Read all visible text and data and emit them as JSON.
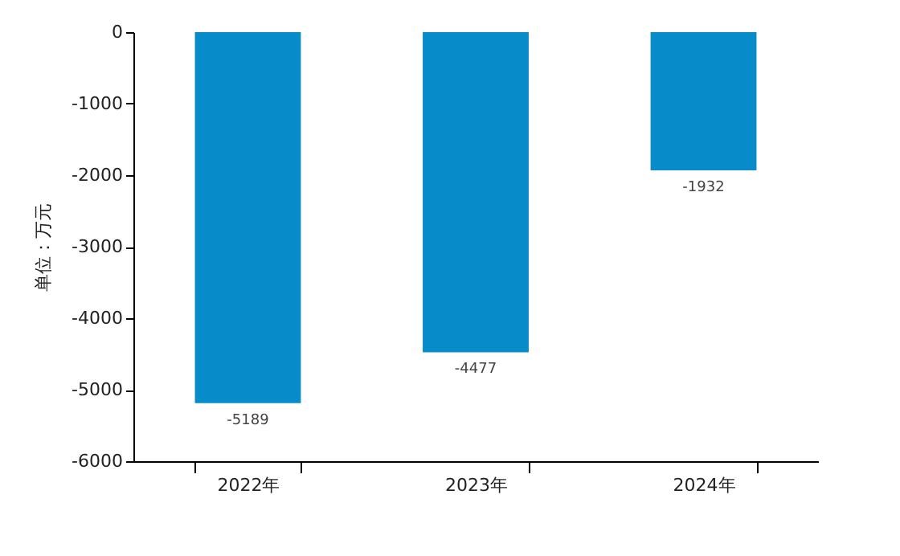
{
  "chart_data": {
    "type": "bar",
    "ylabel": "单位：万元",
    "categories": [
      "2022年",
      "2023年",
      "2024年"
    ],
    "values": [
      -5189,
      -4477,
      -1932
    ],
    "color": "#078bc9",
    "ylim": [
      -6000,
      0
    ],
    "yticks": [
      -6000,
      -5000,
      -4000,
      -3000,
      -2000,
      -1000,
      0
    ],
    "data_labels": true,
    "grid": false
  }
}
